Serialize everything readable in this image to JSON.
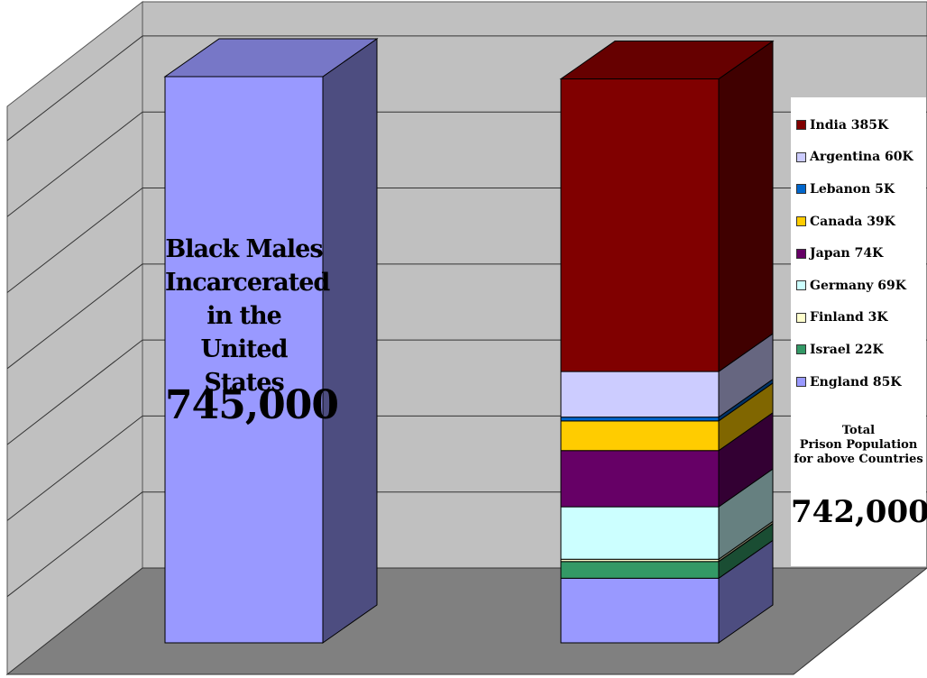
{
  "chart_data": {
    "type": "bar",
    "style": "3d-stacked",
    "grid": true,
    "legend_placement": "right",
    "categories": [
      "Black Males Incarcerated in the United States",
      "Prison Population for above Countries"
    ],
    "left_bar": {
      "label_lines": [
        "Black Males",
        "Incarcerated",
        "in the",
        "United States"
      ],
      "value": 745000,
      "value_label": "745,000",
      "color": "#9999ff"
    },
    "stacked_bar": {
      "total": 742000,
      "total_label_lines": [
        "Total",
        "Prison Population",
        "for above Countries"
      ],
      "total_value_label": "742,000",
      "series": [
        {
          "name": "England",
          "value": 85000,
          "label": "England 85K",
          "color": "#9999ff"
        },
        {
          "name": "Israel",
          "value": 22000,
          "label": "Israel 22K",
          "color": "#339966"
        },
        {
          "name": "Finland",
          "value": 3000,
          "label": "Finland 3K",
          "color": "#ffffcc"
        },
        {
          "name": "Germany",
          "value": 69000,
          "label": "Germany 69K",
          "color": "#ccffff"
        },
        {
          "name": "Japan",
          "value": 74000,
          "label": "Japan 74K",
          "color": "#660066"
        },
        {
          "name": "Canada",
          "value": 39000,
          "label": "Canada 39K",
          "color": "#ffcc00"
        },
        {
          "name": "Lebanon",
          "value": 5000,
          "label": "Lebanon 5K",
          "color": "#0066cc"
        },
        {
          "name": "Argentina",
          "value": 60000,
          "label": "Argentina 60K",
          "color": "#ccccff"
        },
        {
          "name": "India",
          "value": 385000,
          "label": "India 385K",
          "color": "#800000"
        }
      ]
    },
    "ylim": [
      0,
      800000
    ],
    "gridlines": [
      100000,
      200000,
      300000,
      400000,
      500000,
      600000,
      700000
    ]
  }
}
